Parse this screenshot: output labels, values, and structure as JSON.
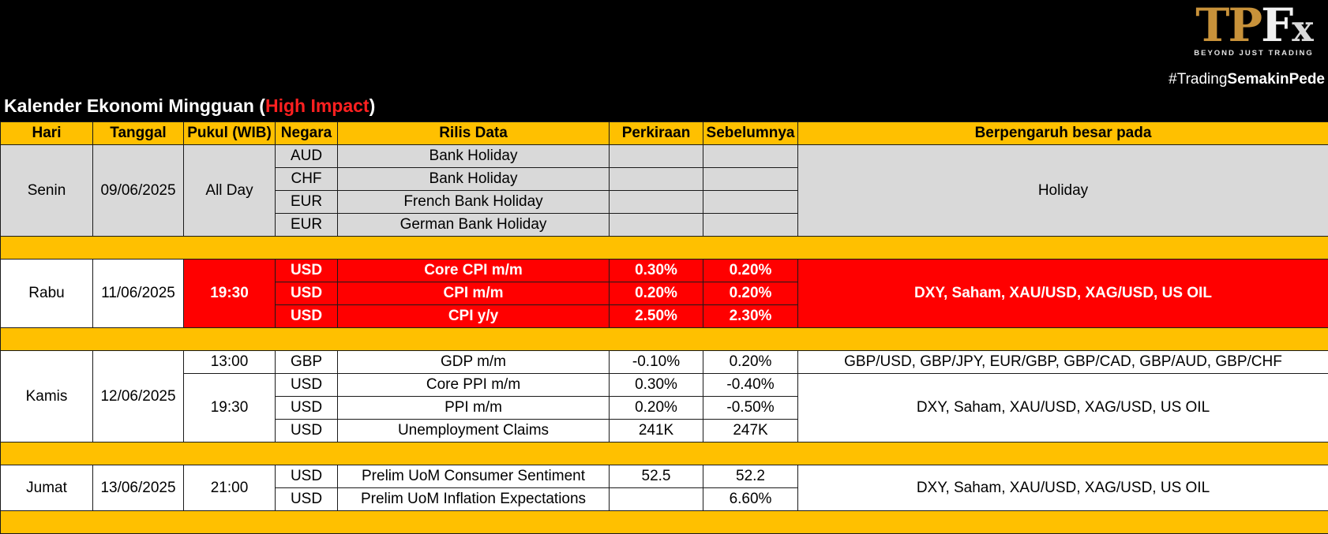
{
  "header": {
    "logo": {
      "tp": "TP",
      "f": "F",
      "x": "x",
      "tagline": "BEYOND JUST TRADING"
    },
    "hashtag_prefix": "#Trading",
    "hashtag_bold": "SemakinPede",
    "title_prefix": "Kalender Ekonomi Mingguan (",
    "title_highlight": "High Impact",
    "title_suffix": ")"
  },
  "colors": {
    "header_bg": "#000000",
    "column_header_bg": "#ffc000",
    "high_impact": "#ff0000",
    "holiday_bg": "#d9d9d9"
  },
  "columns": [
    "Hari",
    "Tanggal",
    "Pukul (WIB)",
    "Negara",
    "Rilis Data",
    "Perkiraan",
    "Sebelumnya",
    "Berpengaruh besar pada"
  ],
  "days": {
    "senin": {
      "day": "Senin",
      "date": "09/06/2025",
      "time": "All Day",
      "impact": "Holiday",
      "rows": [
        {
          "country": "AUD",
          "release": "Bank Holiday",
          "forecast": "",
          "previous": ""
        },
        {
          "country": "CHF",
          "release": "Bank Holiday",
          "forecast": "",
          "previous": ""
        },
        {
          "country": "EUR",
          "release": "French Bank Holiday",
          "forecast": "",
          "previous": ""
        },
        {
          "country": "EUR",
          "release": "German Bank Holiday",
          "forecast": "",
          "previous": ""
        }
      ]
    },
    "rabu": {
      "day": "Rabu",
      "date": "11/06/2025",
      "time": "19:30",
      "impact": "DXY, Saham, XAU/USD, XAG/USD, US OIL",
      "rows": [
        {
          "country": "USD",
          "release": "Core CPI m/m",
          "forecast": "0.30%",
          "previous": "0.20%"
        },
        {
          "country": "USD",
          "release": "CPI m/m",
          "forecast": "0.20%",
          "previous": "0.20%"
        },
        {
          "country": "USD",
          "release": "CPI y/y",
          "forecast": "2.50%",
          "previous": "2.30%"
        }
      ]
    },
    "kamis": {
      "day": "Kamis",
      "date": "12/06/2025",
      "time_1": "13:00",
      "time_2": "19:30",
      "impact_1": "GBP/USD, GBP/JPY, EUR/GBP, GBP/CAD, GBP/AUD, GBP/CHF",
      "impact_2": "DXY, Saham, XAU/USD, XAG/USD, US OIL",
      "rows": [
        {
          "country": "GBP",
          "release": "GDP m/m",
          "forecast": "-0.10%",
          "previous": "0.20%"
        },
        {
          "country": "USD",
          "release": "Core PPI m/m",
          "forecast": "0.30%",
          "previous": "-0.40%"
        },
        {
          "country": "USD",
          "release": "PPI m/m",
          "forecast": "0.20%",
          "previous": "-0.50%"
        },
        {
          "country": "USD",
          "release": "Unemployment Claims",
          "forecast": "241K",
          "previous": "247K"
        }
      ]
    },
    "jumat": {
      "day": "Jumat",
      "date": "13/06/2025",
      "time": "21:00",
      "impact": "DXY, Saham, XAU/USD, XAG/USD, US OIL",
      "rows": [
        {
          "country": "USD",
          "release": "Prelim UoM Consumer Sentiment",
          "forecast": "52.5",
          "previous": "52.2"
        },
        {
          "country": "USD",
          "release": "Prelim UoM Inflation Expectations",
          "forecast": "",
          "previous": "6.60%"
        }
      ]
    }
  }
}
